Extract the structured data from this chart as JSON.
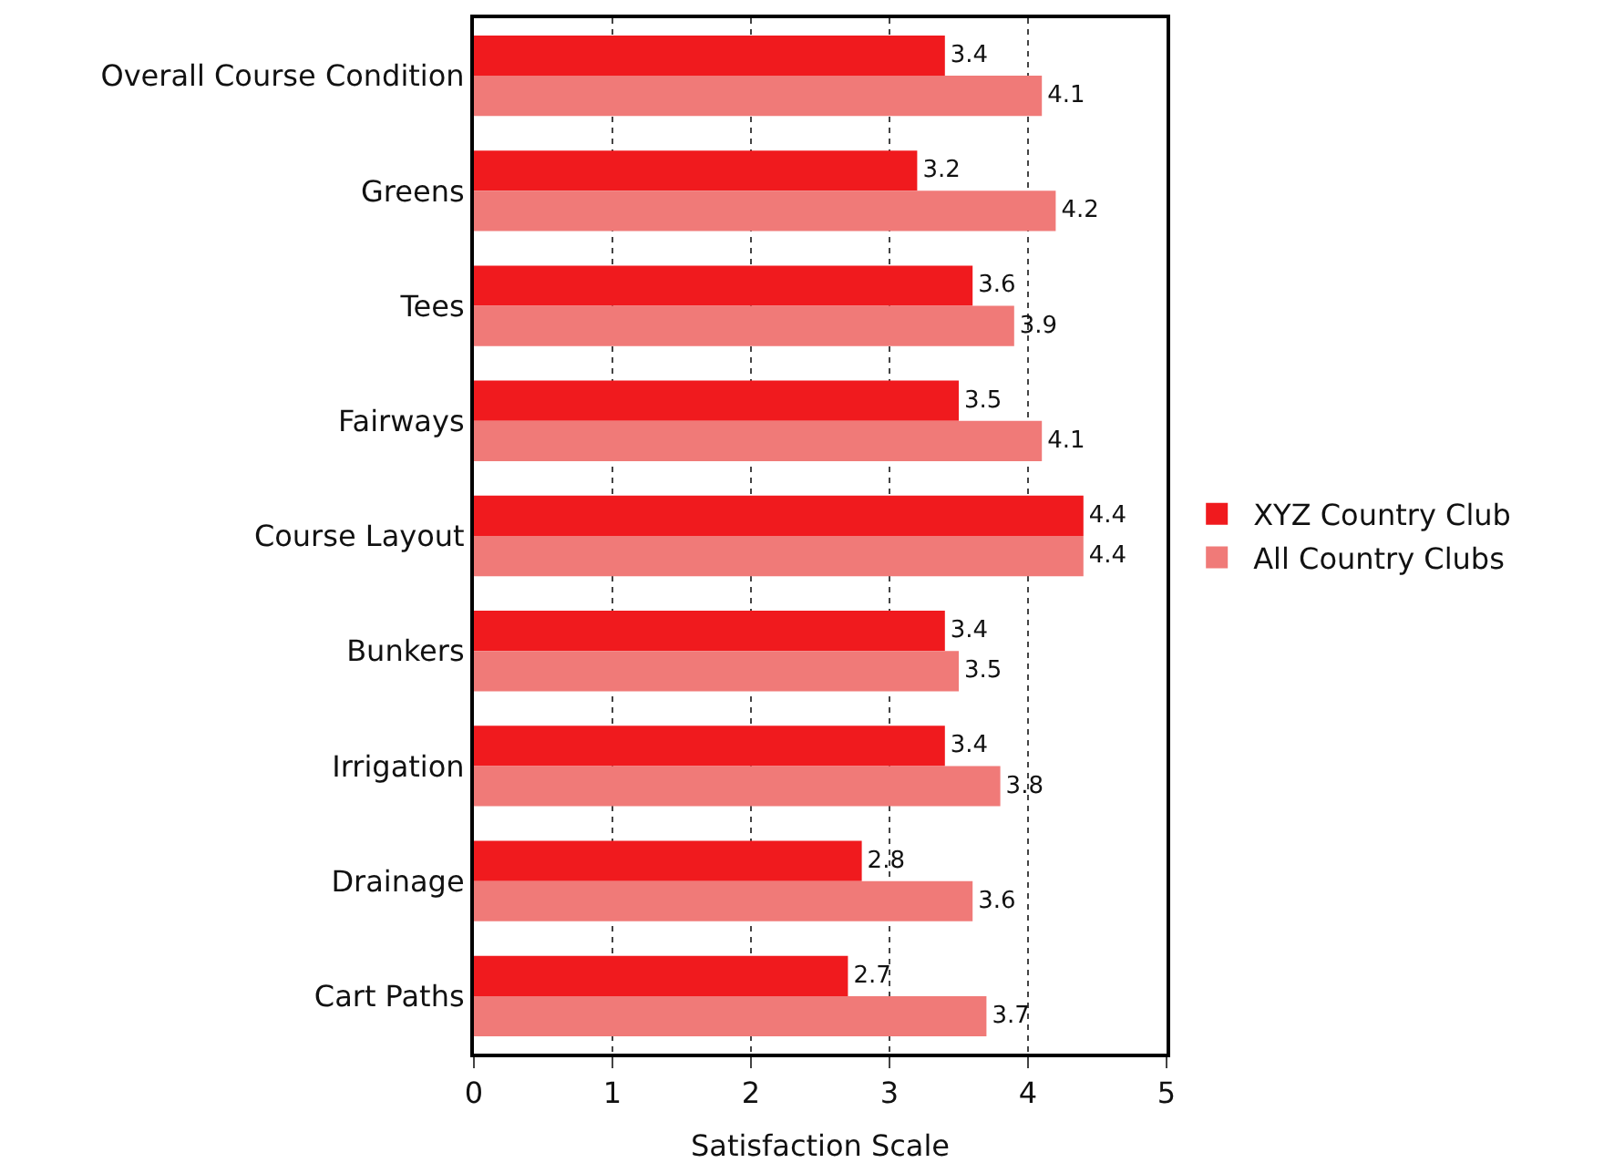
{
  "chart_data": {
    "type": "bar",
    "orientation": "horizontal",
    "xlabel": "Satisfaction Scale",
    "categories": [
      "Overall Course Condition",
      "Greens",
      "Tees",
      "Fairways",
      "Course Layout",
      "Bunkers",
      "Irrigation",
      "Drainage",
      "Cart Paths"
    ],
    "series": [
      {
        "name": "XYZ Country Club",
        "color": "#f01a1e",
        "values": [
          3.4,
          3.2,
          3.6,
          3.5,
          4.4,
          3.4,
          3.4,
          2.8,
          2.7
        ]
      },
      {
        "name": "All Country Clubs",
        "color": "#f07a78",
        "values": [
          4.1,
          4.2,
          3.9,
          4.1,
          4.4,
          3.5,
          3.8,
          3.6,
          3.7
        ]
      }
    ],
    "xlim": [
      0,
      5
    ],
    "xticks": [
      0,
      1,
      2,
      3,
      4,
      5
    ],
    "grid": "x",
    "legend": "right",
    "data_labels": true
  }
}
